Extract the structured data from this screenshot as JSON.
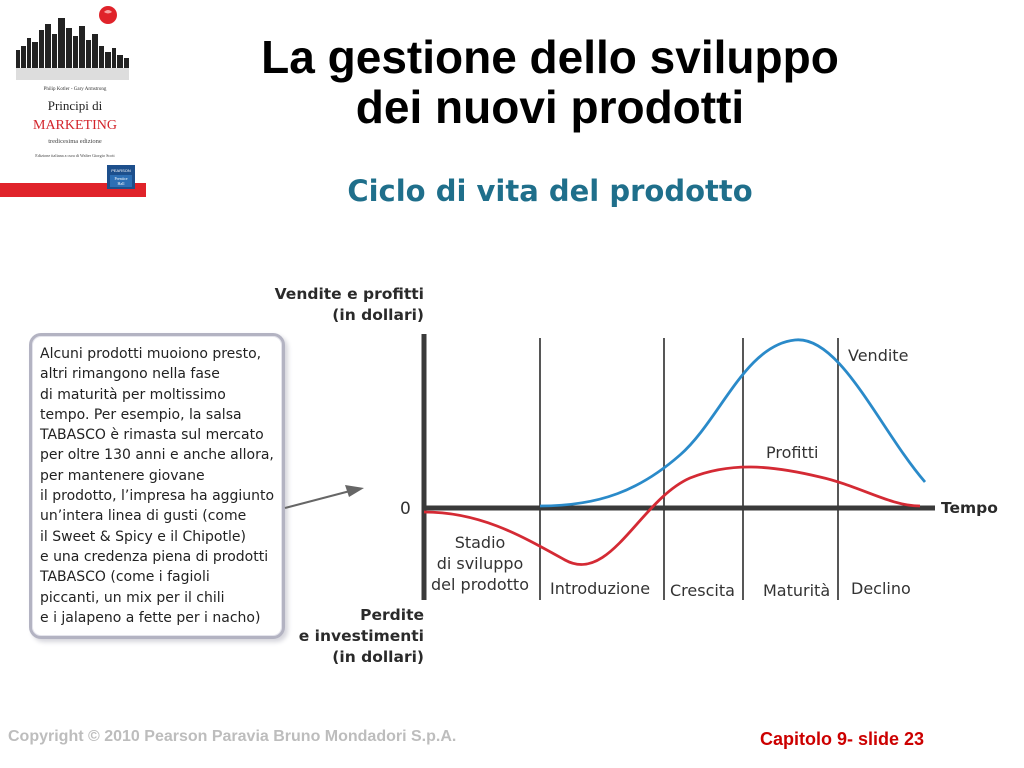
{
  "book": {
    "authors": "Philip Kotler - Gary Armstrong",
    "title_line1": "Principi di",
    "title_line2": "MARKETING",
    "edition": "tredicesima edizione",
    "editor_note": "Edizione italiana a cura di Walter Giorgio Scott",
    "publisher_line1": "PEARSON",
    "publisher_line2": "Prentice",
    "publisher_line3": "Hall"
  },
  "header": {
    "title_line1": "La gestione dello sviluppo",
    "title_line2": "dei nuovi prodotti",
    "subtitle": "Ciclo di vita del prodotto"
  },
  "callout": {
    "lines": [
      "Alcuni prodotti muoiono presto,",
      "altri rimangono nella fase",
      "di maturità per moltissimo",
      "tempo. Per esempio, la salsa",
      "TABASCO è rimasta sul mercato",
      "per oltre 130 anni e anche allora,",
      "per mantenere giovane",
      "il prodotto, l’impresa ha aggiunto",
      "un’intera linea di gusti (come",
      "il Sweet & Spicy e il Chipotle)",
      "e una credenza piena di prodotti",
      "TABASCO (come i fagioli",
      "piccanti, un mix per il chili",
      "e i jalapeno a fette per i nacho)"
    ]
  },
  "chart": {
    "y_label_top_line1": "Vendite e profitti",
    "y_label_top_line2": "(in dollari)",
    "y_label_bottom_line1": "Perdite",
    "y_label_bottom_line2": "e investimenti",
    "y_label_bottom_line3": "(in dollari)",
    "zero_label": "0",
    "x_label": "Tempo",
    "sales_label": "Vendite",
    "profit_label": "Profitti",
    "stage_dev_line1": "Stadio",
    "stage_dev_line2": "di sviluppo",
    "stage_dev_line3": "del prodotto",
    "stages": [
      "Introduzione",
      "Crescita",
      "Maturità",
      "Declino"
    ],
    "colors": {
      "sales": "#2a8ac9",
      "profit": "#d42a34",
      "axis": "#3a3a3a"
    }
  },
  "footer": {
    "copyright": "Copyright © 2010 Pearson Paravia Bruno Mondadori S.p.A.",
    "slide_number": "Capitolo 9- slide 23"
  }
}
